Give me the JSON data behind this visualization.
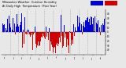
{
  "title": "Milwaukee Weather  Outdoor Humidity  At Daily High  Temperature  (Past Year)",
  "title_fontsize": 2.8,
  "background_color": "#e8e8e8",
  "plot_bg_color": "#e8e8e8",
  "bar_color_above": "#0000cc",
  "bar_color_below": "#cc0000",
  "grid_color": "#888888",
  "ylim": [
    -50,
    50
  ],
  "n_points": 365,
  "random_seed": 42
}
